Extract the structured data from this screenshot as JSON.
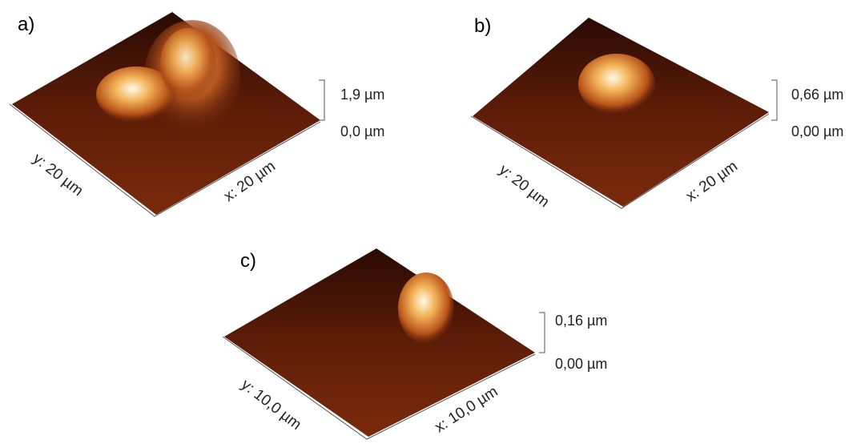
{
  "panels": [
    {
      "label": "a)",
      "z_max": "1,9 µm",
      "z_min": "0,0 µm",
      "x_axis": "x: 20 µm",
      "y_axis": "y: 20 µm"
    },
    {
      "label": "b)",
      "z_max": "0,66 µm",
      "z_min": "0,00 µm",
      "x_axis": "x: 20 µm",
      "y_axis": "y: 20 µm"
    },
    {
      "label": "c)",
      "z_max": "0,16 µm",
      "z_min": "0,00 µm",
      "x_axis": "x: 10,0 µm",
      "y_axis": "y: 10,0 µm"
    }
  ]
}
